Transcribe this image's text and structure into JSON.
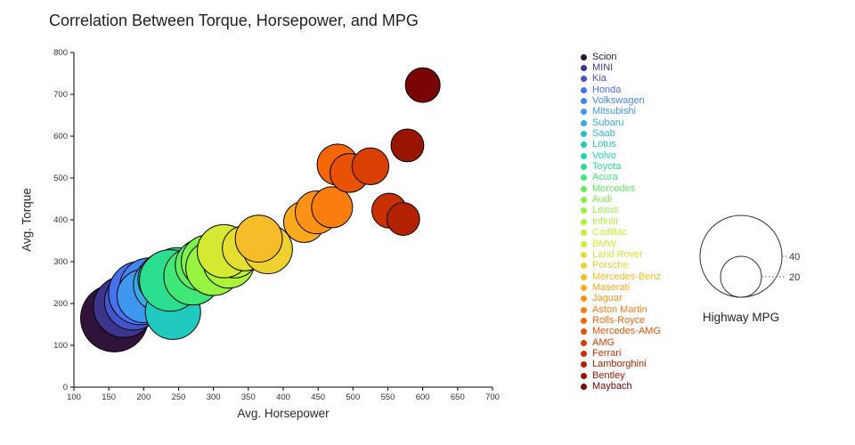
{
  "title": "Correlation Between Torque, Horsepower, and MPG",
  "chart_data": {
    "type": "scatter",
    "subtype": "bubble",
    "title": "Correlation Between Torque, Horsepower, and MPG",
    "xlabel": "Avg. Horsepower",
    "ylabel": "Avg. Torque",
    "xlim": [
      100,
      700
    ],
    "xtick_step": 50,
    "ylim": [
      0,
      800
    ],
    "ytick_step": 100,
    "grid": false,
    "legend_position": "right",
    "size_legend": {
      "title": "Highway MPG",
      "values": [
        40,
        20
      ]
    },
    "size_field": "mpg",
    "series": [
      {
        "name": "Scion",
        "color": "#30123b",
        "hp": 158,
        "torque": 165,
        "mpg": 33
      },
      {
        "name": "MINI",
        "color": "#3d358b",
        "hp": 172,
        "torque": 192,
        "mpg": 30
      },
      {
        "name": "Kia",
        "color": "#4454c9",
        "hp": 185,
        "torque": 205,
        "mpg": 28
      },
      {
        "name": "Honda",
        "color": "#4671f0",
        "hp": 195,
        "torque": 225,
        "mpg": 31
      },
      {
        "name": "Volkswagen",
        "color": "#4584f2",
        "hp": 208,
        "torque": 238,
        "mpg": 29
      },
      {
        "name": "Mitsubishi",
        "color": "#3f98f0",
        "hp": 200,
        "torque": 218,
        "mpg": 26
      },
      {
        "name": "Subaru",
        "color": "#35abe5",
        "hp": 225,
        "torque": 245,
        "mpg": 27
      },
      {
        "name": "Saab",
        "color": "#2bbcd2",
        "hp": 230,
        "torque": 258,
        "mpg": 26
      },
      {
        "name": "Lotus",
        "color": "#20cabe",
        "hp": 242,
        "torque": 180,
        "mpg": 27
      },
      {
        "name": "Volvo",
        "color": "#1dd6a7",
        "hp": 248,
        "torque": 265,
        "mpg": 28
      },
      {
        "name": "Toyota",
        "color": "#2ae090",
        "hp": 238,
        "torque": 255,
        "mpg": 30
      },
      {
        "name": "Acura",
        "color": "#40e878",
        "hp": 270,
        "torque": 265,
        "mpg": 28
      },
      {
        "name": "Mercedes",
        "color": "#5eee60",
        "hp": 282,
        "torque": 292,
        "mpg": 25
      },
      {
        "name": "Audi",
        "color": "#7cf24d",
        "hp": 292,
        "torque": 300,
        "mpg": 26
      },
      {
        "name": "Lexus",
        "color": "#97f43f",
        "hp": 300,
        "torque": 285,
        "mpg": 27
      },
      {
        "name": "Infiniti",
        "color": "#adf439",
        "hp": 322,
        "torque": 298,
        "mpg": 25
      },
      {
        "name": "Cadillac",
        "color": "#c2f134",
        "hp": 330,
        "torque": 320,
        "mpg": 24
      },
      {
        "name": "BMW",
        "color": "#d4ea32",
        "hp": 315,
        "torque": 325,
        "mpg": 26
      },
      {
        "name": "Land Rover",
        "color": "#e3de31",
        "hp": 345,
        "torque": 332,
        "mpg": 22
      },
      {
        "name": "Porsche",
        "color": "#efd02e",
        "hp": 378,
        "torque": 330,
        "mpg": 24
      },
      {
        "name": "Mercedes-Benz",
        "color": "#f7bd28",
        "hp": 365,
        "torque": 355,
        "mpg": 23
      },
      {
        "name": "Maserati",
        "color": "#fca920",
        "hp": 430,
        "torque": 395,
        "mpg": 20
      },
      {
        "name": "Jaguar",
        "color": "#fe9217",
        "hp": 448,
        "torque": 418,
        "mpg": 21
      },
      {
        "name": "Aston Martin",
        "color": "#fb7c0f",
        "hp": 470,
        "torque": 430,
        "mpg": 20
      },
      {
        "name": "Rolls-Royce",
        "color": "#f46608",
        "hp": 478,
        "torque": 532,
        "mpg": 20
      },
      {
        "name": "Mercedes-AMG",
        "color": "#e95204",
        "hp": 495,
        "torque": 512,
        "mpg": 19
      },
      {
        "name": "AMG",
        "color": "#da3f02",
        "hp": 525,
        "torque": 528,
        "mpg": 18
      },
      {
        "name": "Ferrari",
        "color": "#c83001",
        "hp": 552,
        "torque": 422,
        "mpg": 17
      },
      {
        "name": "Lamborghini",
        "color": "#b22201",
        "hp": 572,
        "torque": 402,
        "mpg": 16
      },
      {
        "name": "Bentley",
        "color": "#971501",
        "hp": 578,
        "torque": 578,
        "mpg": 16
      },
      {
        "name": "Maybach",
        "color": "#7a0403",
        "hp": 600,
        "torque": 722,
        "mpg": 17
      }
    ]
  }
}
